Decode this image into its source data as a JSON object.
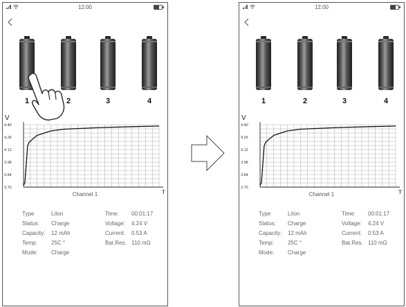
{
  "status_bar": {
    "time": "12:00"
  },
  "batteries": [
    {
      "label": "1"
    },
    {
      "label": "2"
    },
    {
      "label": "3"
    },
    {
      "label": "4"
    }
  ],
  "chart_data": {
    "type": "line",
    "ylabel": "V",
    "xlabel": "T",
    "title": "Channel 1",
    "y_ticks": [
      "4.40",
      "4.26",
      "4.12",
      "3.98",
      "3.84",
      "3.70"
    ],
    "ylim": [
      3.7,
      4.4
    ],
    "grid": true,
    "x": [
      0,
      1,
      2,
      3,
      4,
      6,
      10,
      20,
      30,
      45,
      60,
      80,
      100
    ],
    "y": [
      3.72,
      3.75,
      3.95,
      4.16,
      4.2,
      4.23,
      4.28,
      4.33,
      4.35,
      4.36,
      4.37,
      4.378,
      4.385
    ]
  },
  "info": {
    "left": [
      {
        "label": "Type",
        "value": "LiIon"
      },
      {
        "label": "Status:",
        "value": "Charge"
      },
      {
        "label": "Capacity:",
        "value": "12 mAh"
      },
      {
        "label": "Temp:",
        "value": "25C °"
      },
      {
        "label": "Mode:",
        "value": "Charge"
      }
    ],
    "right": [
      {
        "label": "Time:",
        "value": "00:01:17"
      },
      {
        "label": "Voltage:",
        "value": "4.24 V"
      },
      {
        "label": "Current:",
        "value": "0.53 A"
      },
      {
        "label": "Bat.Res.",
        "value": "110 mΩ"
      }
    ]
  },
  "icons": {
    "back": "chevron-left-icon",
    "transition": "arrow-right-outline-icon",
    "gesture": "pointing-hand-icon"
  }
}
